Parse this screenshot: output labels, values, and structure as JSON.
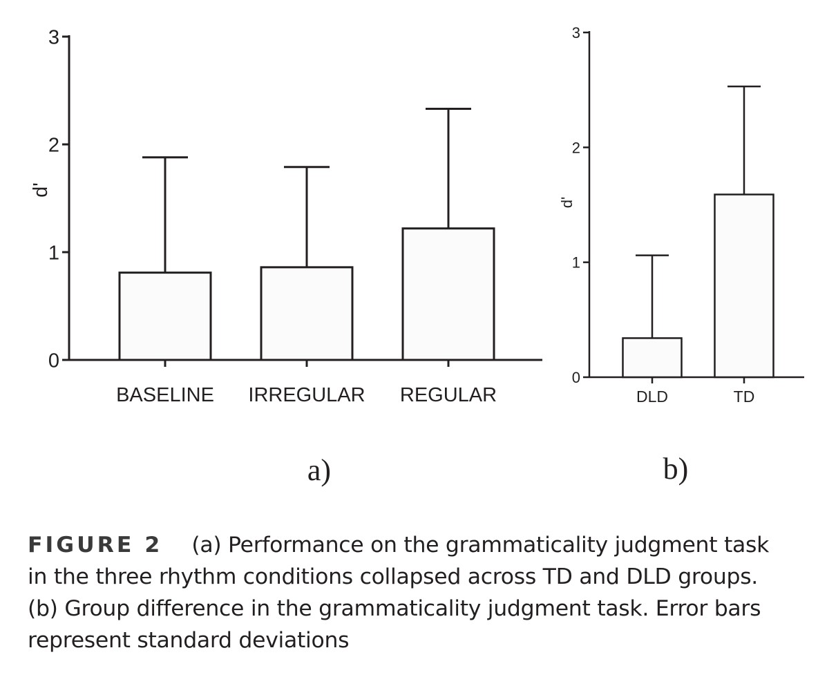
{
  "chart_data": [
    {
      "type": "bar",
      "panel_label": "a)",
      "categories": [
        "BASELINE",
        "IRREGULAR",
        "REGULAR"
      ],
      "values": [
        0.81,
        0.86,
        1.22
      ],
      "error_upper": [
        1.88,
        1.79,
        2.33
      ],
      "ylabel": "d'",
      "xlabel": "",
      "ylim": [
        0,
        3
      ],
      "yticks": [
        "0",
        "1",
        "2",
        "3"
      ],
      "grid": false,
      "bar_color": "#fbfbfb",
      "line_color": "#231f20"
    },
    {
      "type": "bar",
      "panel_label": "b)",
      "categories": [
        "DLD",
        "TD"
      ],
      "values": [
        0.34,
        1.59
      ],
      "error_upper": [
        1.06,
        2.53
      ],
      "ylabel": "d'",
      "xlabel": "",
      "ylim": [
        0,
        3
      ],
      "yticks": [
        "0",
        "1",
        "2",
        "3"
      ],
      "grid": false,
      "bar_color": "#fbfbfb",
      "line_color": "#231f20"
    }
  ],
  "caption": {
    "label": "FIGURE 2",
    "text": "(a) Performance on the grammaticality judgment task in the three rhythm conditions collapsed across TD and DLD groups. (b) Group difference in the grammaticality judgment task. Error bars represent standard deviations"
  }
}
